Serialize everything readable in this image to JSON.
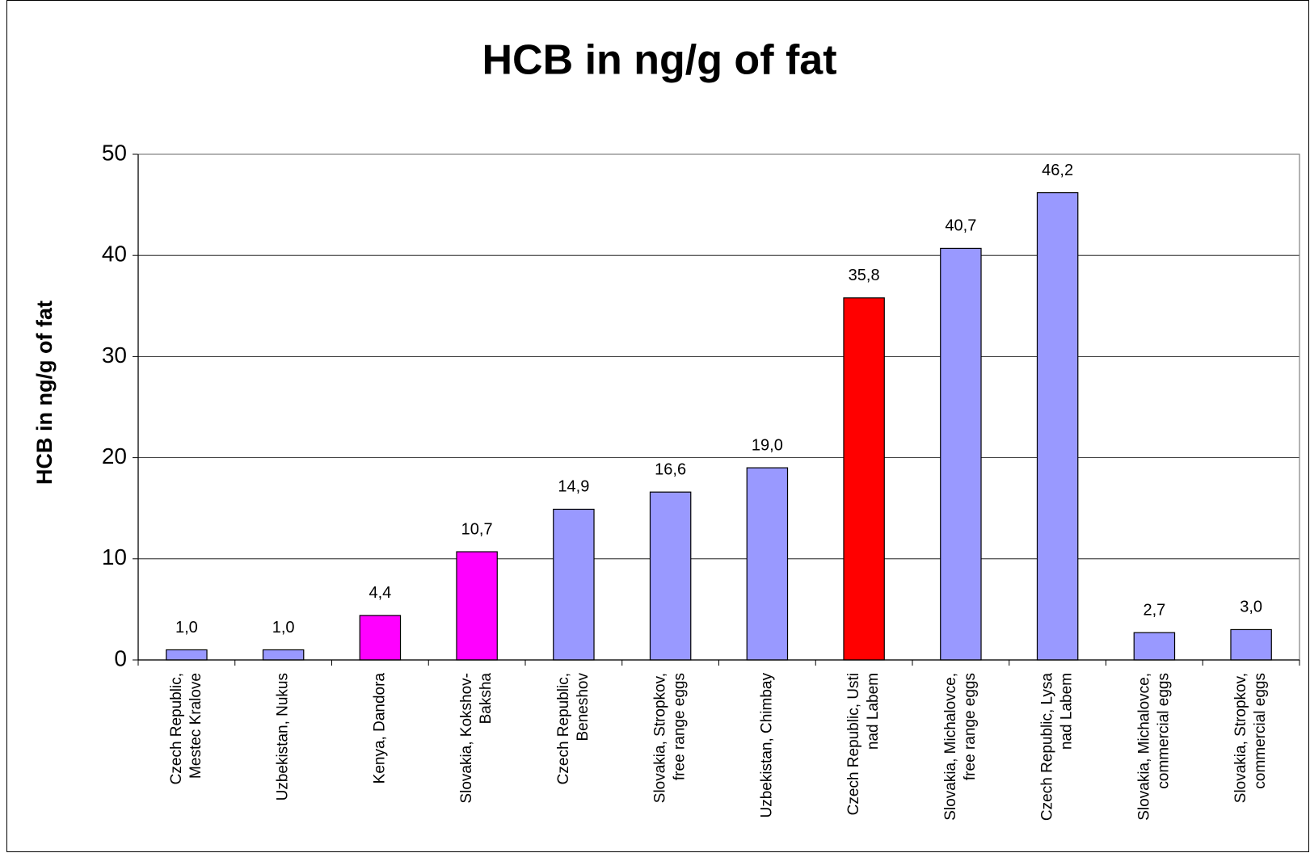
{
  "chart_data": {
    "type": "bar",
    "title": "HCB in ng/g of fat",
    "y_label": "HCB in ng/g of fat",
    "categories": [
      [
        "Czech Republic,",
        "Mestec Kralove"
      ],
      [
        "Uzbekistan, Nukus"
      ],
      [
        "Kenya, Dandora"
      ],
      [
        "Slovakia, Kokshov-",
        "Baksha"
      ],
      [
        "Czech Republic,",
        "Beneshov"
      ],
      [
        "Slovakia, Stropkov,",
        "free range eggs"
      ],
      [
        "Uzbekistan, Chimbay"
      ],
      [
        "Czech Republic, Usti",
        "nad Labem"
      ],
      [
        "Slovakia, Michalovce,",
        "free range eggs"
      ],
      [
        "Czech Republic, Lysa",
        "nad Labem"
      ],
      [
        "Slovakia, Michalovce,",
        "commercial eggs"
      ],
      [
        "Slovakia, Stropkov,",
        "commercial eggs"
      ]
    ],
    "values": [
      1.0,
      1.0,
      4.4,
      10.7,
      14.9,
      16.6,
      19.0,
      35.8,
      40.7,
      46.2,
      2.7,
      3.0
    ],
    "value_labels": [
      "1,0",
      "1,0",
      "4,4",
      "10,7",
      "14,9",
      "16,6",
      "19,0",
      "35,8",
      "40,7",
      "46,2",
      "2,7",
      "3,0"
    ],
    "colors": [
      "#9999ff",
      "#9999ff",
      "#ff00ff",
      "#ff00ff",
      "#9999ff",
      "#9999ff",
      "#9999ff",
      "#ff0000",
      "#9999ff",
      "#9999ff",
      "#9999ff",
      "#9999ff"
    ],
    "ylim": [
      0,
      50
    ],
    "yticks": [
      0,
      10,
      20,
      30,
      40,
      50
    ],
    "grid": true
  }
}
